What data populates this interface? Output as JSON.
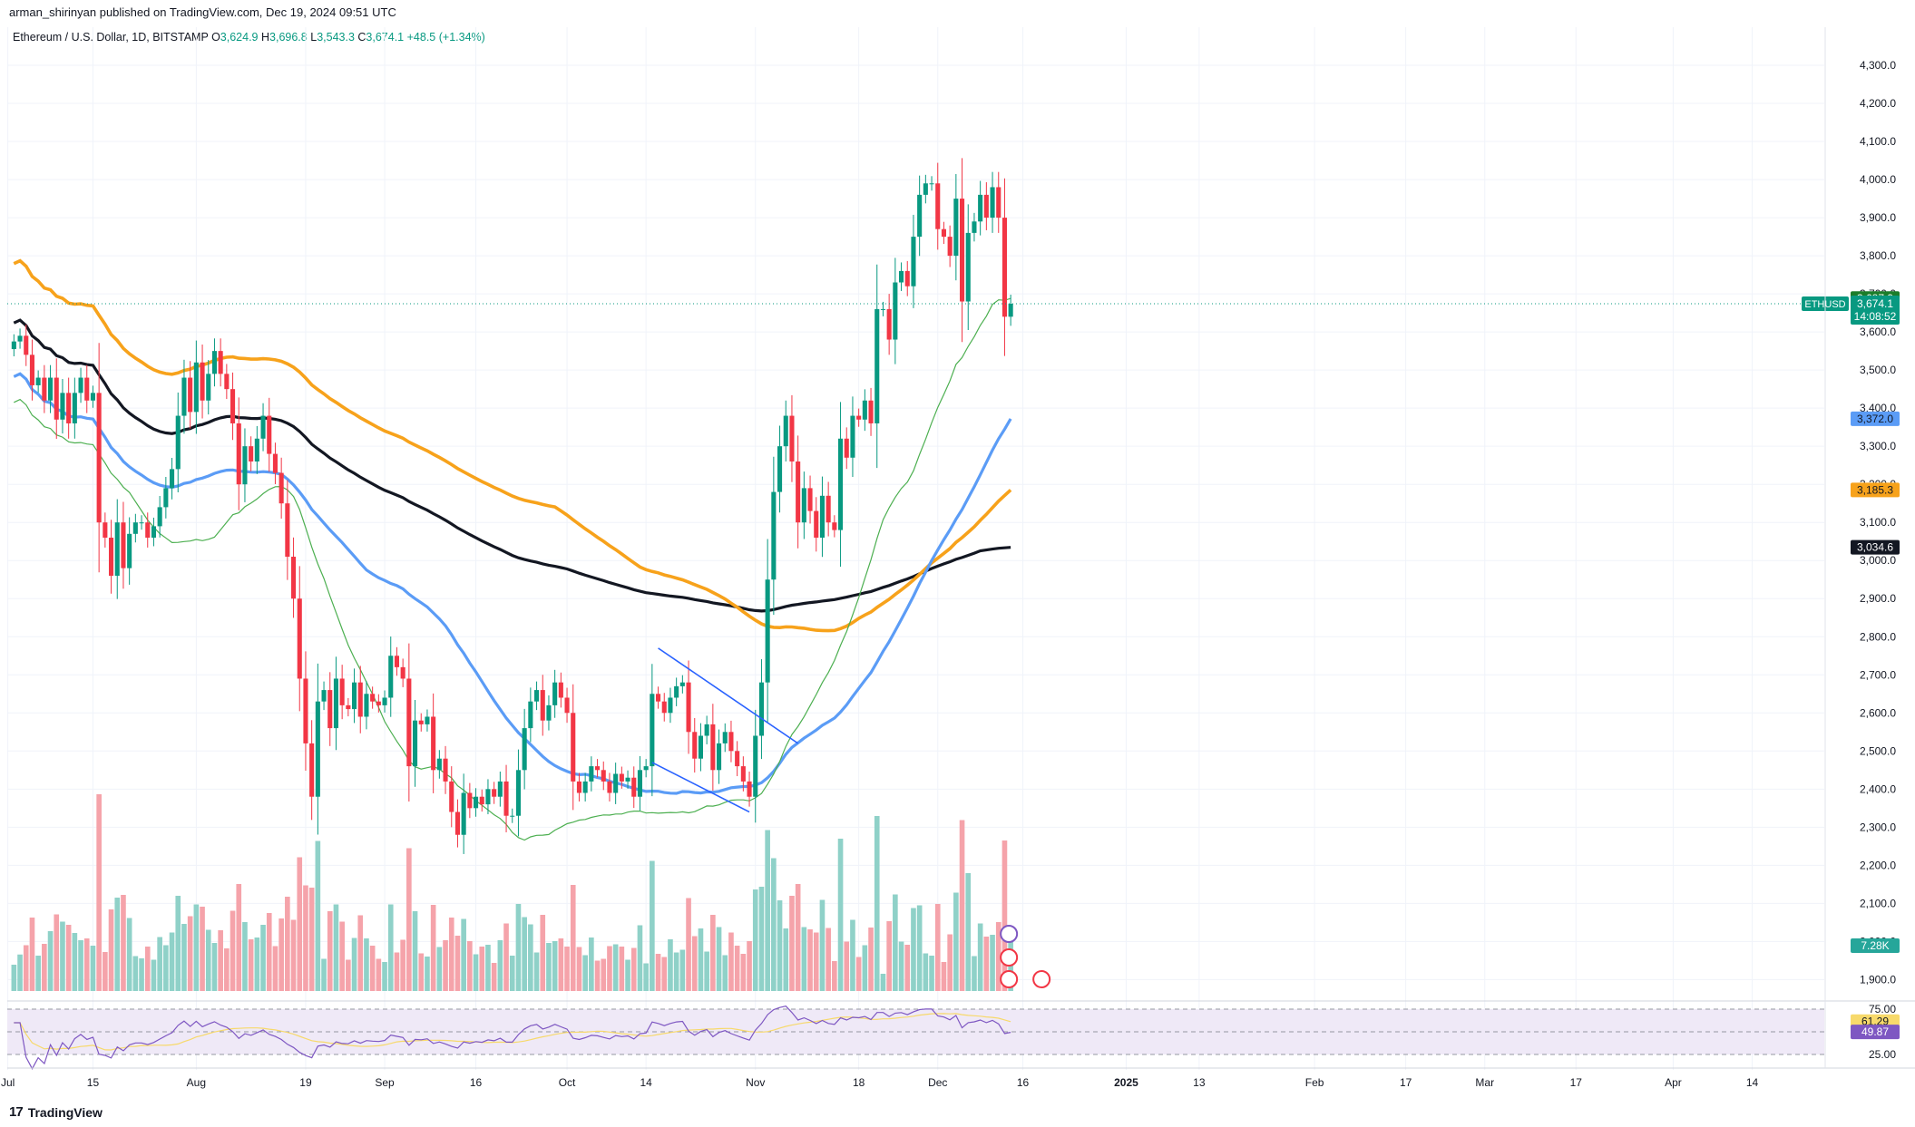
{
  "published_line": "arman_shirinyan published on TradingView.com, Dec 19, 2024 09:51 UTC",
  "legend": {
    "symbol": "Ethereum / U.S. Dollar, 1D, BITSTAMP",
    "o_label": "O",
    "o_value": "3,624.9",
    "h_label": "H",
    "h_value": "3,696.8",
    "l_label": "L",
    "l_value": "3,543.3",
    "c_label": "C",
    "c_value": "3,674.1",
    "change": "+48.5 (+1.34%)"
  },
  "footer": {
    "brand": "TradingView",
    "logo_icon": "tradingview-logo-icon"
  },
  "colors": {
    "up": "#089981",
    "down": "#f23645",
    "vol_up": "#8fd1c8",
    "vol_down": "#f5a3aa",
    "ma_fast": "#4caf50",
    "ma_blue": "#5b9cf6",
    "ma_orange": "#f7a21b",
    "ma_black": "#131722",
    "rsi": "#7e57c2",
    "rsi_ma": "#f7d96b",
    "rsi_band": "#efe9f7"
  },
  "chart_data": {
    "type": "candlestick",
    "title": "Ethereum / U.S. Dollar, 1D, BITSTAMP",
    "ylim": [
      1870,
      4400
    ],
    "price_ticks": [
      "4,300.0",
      "4,200.0",
      "4,100.0",
      "4,000.0",
      "3,900.0",
      "3,800.0",
      "3,700.0",
      "3,600.0",
      "3,500.0",
      "3,400.0",
      "3,300.0",
      "3,200.0",
      "3,100.0",
      "3,000.0",
      "2,900.0",
      "2,800.0",
      "2,700.0",
      "2,600.0",
      "2,500.0",
      "2,400.0",
      "2,300.0",
      "2,200.0",
      "2,100.0",
      "2,000.0",
      "1,900.0"
    ],
    "time_ticks": [
      {
        "label": "Jul",
        "bar": -1
      },
      {
        "label": "15",
        "bar": 13
      },
      {
        "label": "Aug",
        "bar": 30
      },
      {
        "label": "19",
        "bar": 48
      },
      {
        "label": "Sep",
        "bar": 61
      },
      {
        "label": "16",
        "bar": 76
      },
      {
        "label": "Oct",
        "bar": 91
      },
      {
        "label": "14",
        "bar": 104
      },
      {
        "label": "Nov",
        "bar": 122
      },
      {
        "label": "18",
        "bar": 139
      },
      {
        "label": "Dec",
        "bar": 152
      },
      {
        "label": "16",
        "bar": 166
      },
      {
        "label": "2025",
        "bar": 183
      },
      {
        "label": "13",
        "bar": 195
      },
      {
        "label": "Feb",
        "bar": 214
      },
      {
        "label": "17",
        "bar": 229
      },
      {
        "label": "Mar",
        "bar": 242
      },
      {
        "label": "17",
        "bar": 257
      },
      {
        "label": "Apr",
        "bar": 273
      },
      {
        "label": "14",
        "bar": 286
      }
    ],
    "closes": [
      3575,
      3590,
      3540,
      3460,
      3480,
      3420,
      3480,
      3370,
      3440,
      3360,
      3440,
      3480,
      3420,
      3440,
      3100,
      3060,
      2960,
      3100,
      2980,
      3070,
      3100,
      3100,
      3060,
      3090,
      3140,
      3190,
      3240,
      3380,
      3480,
      3390,
      3520,
      3420,
      3490,
      3550,
      3490,
      3450,
      3360,
      3200,
      3300,
      3260,
      3320,
      3380,
      3280,
      3230,
      3150,
      3010,
      2900,
      2690,
      2520,
      2380,
      2630,
      2660,
      2560,
      2690,
      2620,
      2610,
      2680,
      2590,
      2650,
      2630,
      2620,
      2640,
      2750,
      2720,
      2690,
      2460,
      2580,
      2570,
      2590,
      2450,
      2480,
      2420,
      2340,
      2280,
      2390,
      2350,
      2380,
      2360,
      2400,
      2380,
      2420,
      2330,
      2330,
      2450,
      2560,
      2630,
      2660,
      2580,
      2620,
      2680,
      2640,
      2600,
      2420,
      2390,
      2420,
      2460,
      2450,
      2420,
      2390,
      2440,
      2420,
      2430,
      2380,
      2450,
      2460,
      2650,
      2630,
      2600,
      2640,
      2670,
      2680,
      2550,
      2480,
      2540,
      2570,
      2450,
      2520,
      2550,
      2500,
      2460,
      2420,
      2380,
      2540,
      2680,
      2950,
      3180,
      3300,
      3380,
      3260,
      3100,
      3190,
      3130,
      3060,
      3170,
      3100,
      3080,
      3320,
      3270,
      3380,
      3370,
      3420,
      3360,
      3660,
      3660,
      3580,
      3730,
      3760,
      3720,
      3850,
      3960,
      3990,
      3990,
      3870,
      3850,
      3800,
      3950,
      3680,
      3860,
      3890,
      3960,
      3900,
      3980,
      3900,
      3640,
      3674
    ],
    "volume_label": "7.28K",
    "ma_fast_last": 3687.9,
    "ma_blue_last": 3372.0,
    "ma_blue_label": "3,372.0",
    "ma_orange_last": 3185.3,
    "ma_orange_label": "3,185.3",
    "ma_black_last": 3034.6,
    "ma_black_label": "3,034.6",
    "ma_fast_label": "3,687.9",
    "last_price": 3674.1,
    "last_price_label": "3,674.1",
    "symbol_tag": "ETHUSD",
    "countdown": "14:08:52",
    "rsi": {
      "upper": 75.0,
      "lower": 25.0,
      "value": 49.87,
      "ma_value": 61.29,
      "upper_label": "75.00",
      "lower_label": "25.00",
      "value_label": "49.87",
      "ma_label": "61.29"
    },
    "channel_annotation": {
      "type": "descending-channel",
      "upper": [
        [
          106,
          2770
        ],
        [
          129,
          2520
        ]
      ],
      "lower": [
        [
          105,
          2470
        ],
        [
          121,
          2340
        ]
      ]
    }
  }
}
